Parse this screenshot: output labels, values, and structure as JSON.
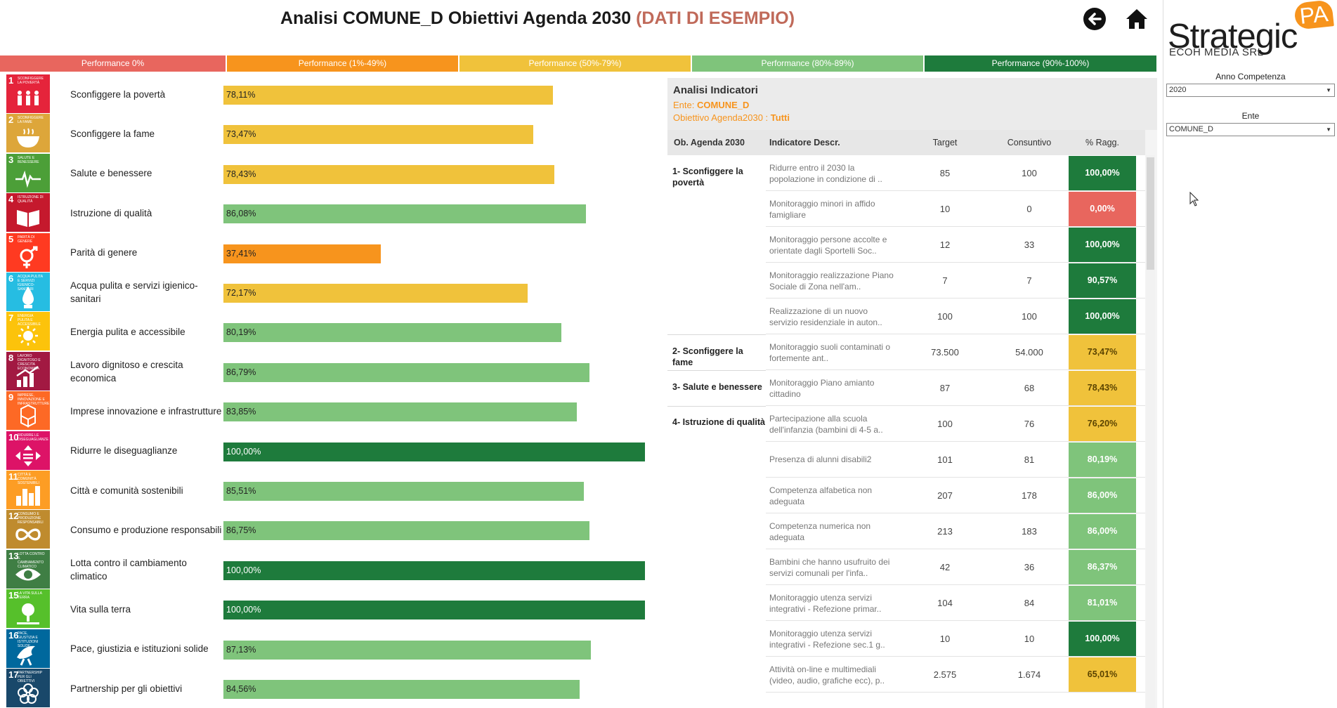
{
  "header": {
    "title": "Analisi COMUNE_D Obiettivi Agenda 2030",
    "sample_tag": "(DATI DI ESEMPIO)",
    "back_icon": "arrow-left-circle-icon",
    "home_icon": "home-icon"
  },
  "legend": [
    {
      "label": "Performance 0%",
      "color": "#e8665e"
    },
    {
      "label": "Performance (1%-49%)",
      "color": "#f7941d"
    },
    {
      "label": "Performance (50%-79%)",
      "color": "#f0c23b"
    },
    {
      "label": "Performance (80%-89%)",
      "color": "#7fc47b"
    },
    {
      "label": "Performance (90%-100%)",
      "color": "#1e7b3c"
    }
  ],
  "goals": [
    {
      "num": "1",
      "icon_text": "SCONFIGGERE LA POVERTÀ",
      "icon": "people-icon",
      "label": "Sconfiggere la povertà",
      "value": 78.11,
      "value_label": "78,11%",
      "icon_color": "#e5243b",
      "bar_color": "#f0c23b"
    },
    {
      "num": "2",
      "icon_text": "SCONFIGGERE LA FAME",
      "icon": "bowl-icon",
      "label": "Sconfiggere la fame",
      "value": 73.47,
      "value_label": "73,47%",
      "icon_color": "#dda63a",
      "bar_color": "#f0c23b"
    },
    {
      "num": "3",
      "icon_text": "SALUTE E BENESSERE",
      "icon": "heartbeat-icon",
      "label": "Salute e benessere",
      "value": 78.43,
      "value_label": "78,43%",
      "icon_color": "#4c9f38",
      "bar_color": "#f0c23b"
    },
    {
      "num": "4",
      "icon_text": "ISTRUZIONE DI QUALITÀ",
      "icon": "book-icon",
      "label": "Istruzione di qualità",
      "value": 86.08,
      "value_label": "86,08%",
      "icon_color": "#c5192d",
      "bar_color": "#7fc47b"
    },
    {
      "num": "5",
      "icon_text": "PARITÀ DI GENERE",
      "icon": "gender-icon",
      "label": "Parità di genere",
      "value": 37.41,
      "value_label": "37,41%",
      "icon_color": "#ff3a21",
      "bar_color": "#f7941d"
    },
    {
      "num": "6",
      "icon_text": "ACQUA PULITA E SERVIZI IGIENICO-SANITARI",
      "icon": "water-icon",
      "label": "Acqua pulita e servizi igienico-sanitari",
      "value": 72.17,
      "value_label": "72,17%",
      "icon_color": "#26bde2",
      "bar_color": "#f0c23b"
    },
    {
      "num": "7",
      "icon_text": "ENERGIA PULITA E ACCESSIBILE",
      "icon": "sun-icon",
      "label": "Energia pulita e accessibile",
      "value": 80.19,
      "value_label": "80,19%",
      "icon_color": "#fcc30b",
      "bar_color": "#7fc47b"
    },
    {
      "num": "8",
      "icon_text": "LAVORO DIGNITOSO E CRESCITA ECONOMICA",
      "icon": "growth-chart-icon",
      "label": "Lavoro dignitoso e crescita economica",
      "value": 86.79,
      "value_label": "86,79%",
      "icon_color": "#a21942",
      "bar_color": "#7fc47b"
    },
    {
      "num": "9",
      "icon_text": "IMPRESE, INNOVAZIONE E INFRASTRUTTURE",
      "icon": "cubes-icon",
      "label": "Imprese innovazione e infrastrutture",
      "value": 83.85,
      "value_label": "83,85%",
      "icon_color": "#fd6925",
      "bar_color": "#7fc47b"
    },
    {
      "num": "10",
      "icon_text": "RIDURRE LE DISEGUAGLIANZE",
      "icon": "equality-icon",
      "label": "Ridurre le diseguaglianze",
      "value": 100.0,
      "value_label": "100,00%",
      "icon_color": "#dd1367",
      "bar_color": "#1e7b3c"
    },
    {
      "num": "11",
      "icon_text": "CITTÀ E COMUNITÀ SOSTENIBILI",
      "icon": "city-icon",
      "label": "Città e comunità sostenibili",
      "value": 85.51,
      "value_label": "85,51%",
      "icon_color": "#fd9d24",
      "bar_color": "#7fc47b"
    },
    {
      "num": "12",
      "icon_text": "CONSUMO E PRODUZIONE RESPONSABILI",
      "icon": "infinity-icon",
      "label": "Consumo e produzione responsabili",
      "value": 86.75,
      "value_label": "86,75%",
      "icon_color": "#bf8b2e",
      "bar_color": "#7fc47b"
    },
    {
      "num": "13",
      "icon_text": "LOTTA CONTRO IL CAMBIAMENTO CLIMATICO",
      "icon": "eye-globe-icon",
      "label": "Lotta contro il cambiamento climatico",
      "value": 100.0,
      "value_label": "100,00%",
      "icon_color": "#3f7e44",
      "bar_color": "#1e7b3c"
    },
    {
      "num": "15",
      "icon_text": "LA VITA SULLA TERRA",
      "icon": "tree-icon",
      "label": "Vita sulla terra",
      "value": 100.0,
      "value_label": "100,00%",
      "icon_color": "#56c02b",
      "bar_color": "#1e7b3c"
    },
    {
      "num": "16",
      "icon_text": "PACE, GIUSTIZIA E ISTITUZIONI SOLIDE",
      "icon": "dove-icon",
      "label": "Pace, giustizia e istituzioni solide",
      "value": 87.13,
      "value_label": "87,13%",
      "icon_color": "#00689d",
      "bar_color": "#7fc47b"
    },
    {
      "num": "17",
      "icon_text": "PARTNERSHIP PER GLI OBIETTIVI",
      "icon": "flower-icon",
      "label": "Partnership per gli obiettivi",
      "value": 84.56,
      "value_label": "84,56%",
      "icon_color": "#19486a",
      "bar_color": "#7fc47b"
    }
  ],
  "indicators": {
    "title": "Analisi Indicatori",
    "ente_label": "Ente:",
    "ente_value": "COMUNE_D",
    "obiettivo_label": "Obiettivo Agenda2030 :",
    "obiettivo_value": "Tutti",
    "columns": [
      "Ob. Agenda 2030",
      "Indicatore Descr.",
      "Target",
      "Consuntivo",
      "% Ragg."
    ],
    "groups": [
      {
        "goal": "1- Sconfiggere la povertà",
        "rows": [
          {
            "desc": "Ridurre entro il 2030 la popolazione in condizione di ..",
            "target": "85",
            "consuntivo": "100",
            "pct": "100,00%",
            "color": "#1e7b3c"
          },
          {
            "desc": "Monitoraggio minori in affido famigliare",
            "target": "10",
            "consuntivo": "0",
            "pct": "0,00%",
            "color": "#e8665e"
          },
          {
            "desc": "Monitoraggio persone accolte e orientate dagli Sportelli Soc..",
            "target": "12",
            "consuntivo": "33",
            "pct": "100,00%",
            "color": "#1e7b3c"
          },
          {
            "desc": "Monitoraggio realizzazione Piano Sociale di Zona nell'am..",
            "target": "7",
            "consuntivo": "7",
            "pct": "90,57%",
            "color": "#1e7b3c"
          },
          {
            "desc": "Realizzazione di un nuovo servizio residenziale in auton..",
            "target": "100",
            "consuntivo": "100",
            "pct": "100,00%",
            "color": "#1e7b3c"
          }
        ]
      },
      {
        "goal": "2- Sconfiggere la fame",
        "rows": [
          {
            "desc": "Monitoraggio suoli contaminati o fortemente ant..",
            "target": "73.500",
            "consuntivo": "54.000",
            "pct": "73,47%",
            "color": "#f0c23b"
          }
        ]
      },
      {
        "goal": "3- Salute e benessere",
        "rows": [
          {
            "desc": "Monitoraggio Piano amianto cittadino",
            "target": "87",
            "consuntivo": "68",
            "pct": "78,43%",
            "color": "#f0c23b"
          }
        ]
      },
      {
        "goal": "4- Istruzione di qualità",
        "rows": [
          {
            "desc": "Partecipazione alla scuola dell'infanzia (bambini di 4-5 a..",
            "target": "100",
            "consuntivo": "76",
            "pct": "76,20%",
            "color": "#f0c23b"
          },
          {
            "desc": "Presenza di alunni disabili2",
            "target": "101",
            "consuntivo": "81",
            "pct": "80,19%",
            "color": "#7fc47b"
          },
          {
            "desc": "Competenza alfabetica non adeguata",
            "target": "207",
            "consuntivo": "178",
            "pct": "86,00%",
            "color": "#7fc47b"
          },
          {
            "desc": "Competenza numerica non adeguata",
            "target": "213",
            "consuntivo": "183",
            "pct": "86,00%",
            "color": "#7fc47b"
          },
          {
            "desc": "Bambini che hanno usufruito dei servizi comunali per l'infa..",
            "target": "42",
            "consuntivo": "36",
            "pct": "86,37%",
            "color": "#7fc47b"
          },
          {
            "desc": "Monitoraggio utenza servizi integrativi - Refezione primar..",
            "target": "104",
            "consuntivo": "84",
            "pct": "81,01%",
            "color": "#7fc47b"
          },
          {
            "desc": "Monitoraggio utenza servizi integrativi - Refezione sec.1 g..",
            "target": "10",
            "consuntivo": "10",
            "pct": "100,00%",
            "color": "#1e7b3c"
          },
          {
            "desc": "Attività on-line e multimediali (video, audio, grafiche ecc), p..",
            "target": "2.575",
            "consuntivo": "1.674",
            "pct": "65,01%",
            "color": "#f0c23b"
          }
        ]
      }
    ]
  },
  "sidebar": {
    "logo_word": "Strategic",
    "logo_badge": "PA",
    "logo_sub": "ECOH MEDIA SRL",
    "filters": [
      {
        "label": "Anno Competenza",
        "value": "2020"
      },
      {
        "label": "Ente",
        "value": "COMUNE_D"
      }
    ]
  }
}
